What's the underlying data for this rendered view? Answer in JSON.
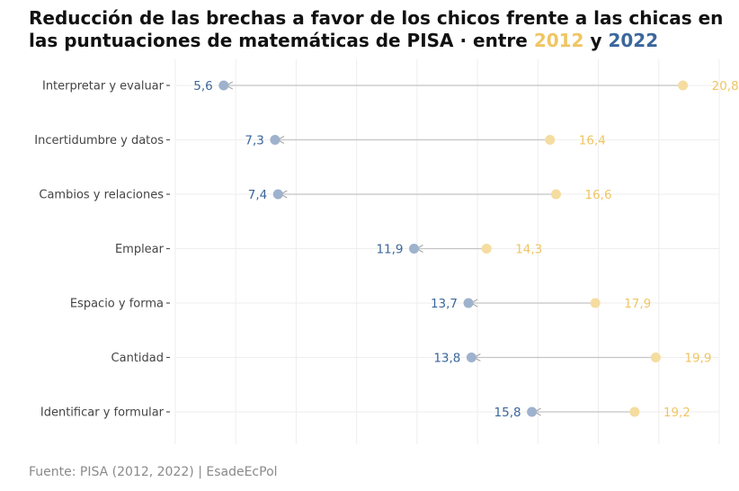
{
  "title": {
    "prefix": "Reducción de las brechas a favor de los chicos frente a las chicas en las puntuaciones de matemáticas de PISA · entre ",
    "year_a": "2012",
    "connector": " y ",
    "year_b": "2022"
  },
  "source": "Fuente: PISA (2012, 2022) | EsadeEcPol",
  "colors": {
    "y2012": "#f0c563",
    "y2022": "#3c679c",
    "point2012": "#f5dc9f",
    "point2022": "#9eb2cd",
    "connector": "#c4c4c4",
    "grid": "#eeeeee",
    "label": "#444444"
  },
  "chart_data": {
    "type": "dumbbell",
    "categories": [
      "Interpretar y evaluar",
      "Incertidumbre y datos",
      "Cambios y relaciones",
      "Emplear",
      "Espacio y forma",
      "Cantidad",
      "Identificar y formular"
    ],
    "series": [
      {
        "name": "2012",
        "values": [
          20.8,
          16.4,
          16.6,
          14.3,
          17.9,
          19.9,
          19.2
        ],
        "labels": [
          "20,8",
          "16,4",
          "16,6",
          "14,3",
          "17,9",
          "19,9",
          "19,2"
        ]
      },
      {
        "name": "2022",
        "values": [
          5.6,
          7.3,
          7.4,
          11.9,
          13.7,
          13.8,
          15.8
        ],
        "labels": [
          "5,6",
          "7,3",
          "7,4",
          "11,9",
          "13,7",
          "13,8",
          "15,8"
        ]
      }
    ],
    "xlim": [
      4,
      22
    ],
    "grid": true,
    "legend": "in title"
  }
}
